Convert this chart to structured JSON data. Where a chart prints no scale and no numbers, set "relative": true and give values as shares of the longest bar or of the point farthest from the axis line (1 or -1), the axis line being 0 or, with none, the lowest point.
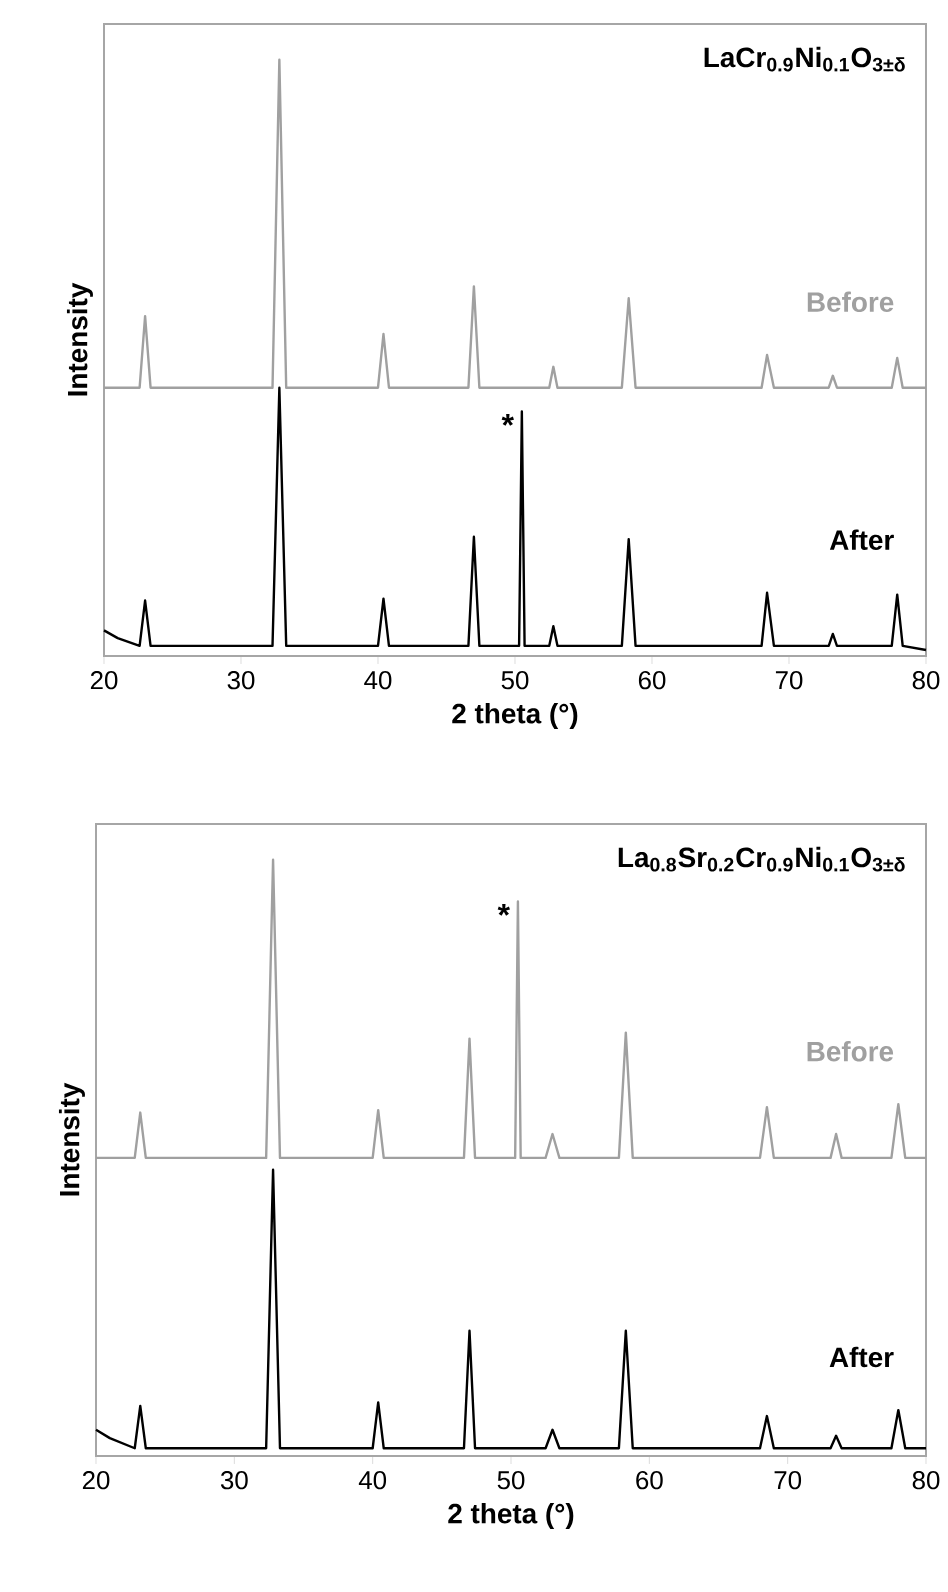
{
  "chart_data": [
    {
      "type": "line",
      "title": "LaCr$_{0.9}$Ni$_{0.1}$O$_{3±δ}$",
      "xlabel": "2 theta (°)",
      "ylabel": "Intensity",
      "relative": true,
      "xlim": [
        20,
        80
      ],
      "xticks": [
        20,
        30,
        40,
        50,
        60,
        70,
        80
      ],
      "grid": false,
      "annotations": [
        {
          "text": "*",
          "x": 50.5,
          "y": 0.41
        }
      ],
      "series": [
        {
          "name": "Before",
          "color": "#a0a0a0",
          "x": [
            20,
            22.6,
            23,
            23.4,
            32.3,
            32.8,
            33.3,
            40.0,
            40.4,
            40.8,
            46.6,
            47,
            47.4,
            52.5,
            52.8,
            53.1,
            57.8,
            58.3,
            58.8,
            68.0,
            68.4,
            68.9,
            72.9,
            73.2,
            73.5,
            77.5,
            77.9,
            78.3,
            80
          ],
          "values": [
            0.45,
            0.45,
            0.57,
            0.45,
            0.45,
            1.0,
            0.45,
            0.45,
            0.54,
            0.45,
            0.45,
            0.62,
            0.45,
            0.45,
            0.485,
            0.45,
            0.45,
            0.6,
            0.45,
            0.45,
            0.505,
            0.45,
            0.45,
            0.47,
            0.45,
            0.45,
            0.5,
            0.45,
            0.45
          ]
        },
        {
          "name": "After",
          "color": "#000000",
          "x": [
            20,
            21,
            22.6,
            23,
            23.4,
            26,
            32.3,
            32.8,
            33.3,
            40.0,
            40.4,
            40.8,
            46.6,
            47,
            47.4,
            50.3,
            50.5,
            50.7,
            52.5,
            52.8,
            53.1,
            57.8,
            58.3,
            58.8,
            68.0,
            68.4,
            68.9,
            72.9,
            73.2,
            73.5,
            77.5,
            77.9,
            78.3,
            80
          ],
          "values": [
            0.043,
            0.03,
            0.017,
            0.093,
            0.017,
            0.017,
            0.017,
            0.45,
            0.017,
            0.017,
            0.096,
            0.017,
            0.017,
            0.2,
            0.017,
            0.017,
            0.41,
            0.017,
            0.017,
            0.05,
            0.017,
            0.017,
            0.196,
            0.017,
            0.017,
            0.106,
            0.017,
            0.017,
            0.037,
            0.017,
            0.017,
            0.103,
            0.017,
            0.01
          ]
        }
      ]
    },
    {
      "type": "line",
      "title": "La$_{0.8}$Sr$_{0.2}$Cr$_{0.9}$Ni$_{0.1}$O$_{3±δ}$",
      "xlabel": "2 theta (°)",
      "ylabel": "Intensity",
      "relative": true,
      "xlim": [
        20,
        80
      ],
      "xticks": [
        20,
        30,
        40,
        50,
        60,
        70,
        80
      ],
      "grid": false,
      "annotations": [
        {
          "text": "*",
          "x": 50.5,
          "y": 0.93
        }
      ],
      "series": [
        {
          "name": "Before",
          "color": "#a0a0a0",
          "x": [
            20,
            22.8,
            23.2,
            23.6,
            32.3,
            32.8,
            33.3,
            40.0,
            40.4,
            40.8,
            46.6,
            47,
            47.4,
            50.3,
            50.5,
            50.7,
            52.5,
            53,
            53.5,
            57.8,
            58.3,
            58.8,
            68.0,
            68.5,
            69.0,
            73.1,
            73.5,
            73.9,
            77.5,
            78,
            78.5,
            80
          ],
          "values": [
            0.5,
            0.5,
            0.576,
            0.5,
            0.5,
            1.0,
            0.5,
            0.5,
            0.58,
            0.5,
            0.5,
            0.7,
            0.5,
            0.5,
            0.93,
            0.5,
            0.5,
            0.54,
            0.5,
            0.5,
            0.71,
            0.5,
            0.5,
            0.585,
            0.5,
            0.5,
            0.54,
            0.5,
            0.5,
            0.59,
            0.5,
            0.5
          ]
        },
        {
          "name": "After",
          "color": "#000000",
          "x": [
            20,
            21,
            22.8,
            23.2,
            23.6,
            32.3,
            32.8,
            33.3,
            40.0,
            40.4,
            40.8,
            46.6,
            47,
            47.4,
            52.5,
            53,
            53.5,
            57.8,
            58.3,
            58.8,
            68.0,
            68.5,
            69.0,
            73.1,
            73.5,
            73.9,
            77.5,
            78,
            78.5,
            80
          ],
          "values": [
            0.044,
            0.03,
            0.013,
            0.084,
            0.013,
            0.013,
            0.48,
            0.013,
            0.013,
            0.09,
            0.013,
            0.013,
            0.21,
            0.013,
            0.013,
            0.044,
            0.013,
            0.013,
            0.21,
            0.013,
            0.013,
            0.067,
            0.013,
            0.013,
            0.034,
            0.013,
            0.013,
            0.077,
            0.013,
            0.013
          ]
        }
      ]
    }
  ]
}
